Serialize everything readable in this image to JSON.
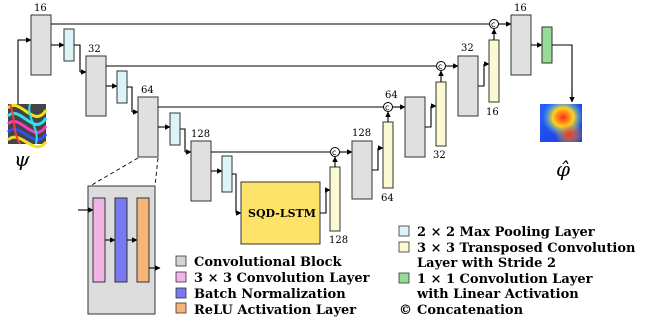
{
  "labels": {
    "psi": "ψ",
    "phi_hat": "φ̂",
    "lstm": "SQD-LSTM",
    "concat_symbol": "c"
  },
  "channels": {
    "c16_enc": "16",
    "c32_enc": "32",
    "c64_enc": "64",
    "c128_enc": "128",
    "c128_lstm": "128",
    "c128_dec": "128",
    "c64_dec_a": "64",
    "c64_dec_b": "64",
    "c32_dec_a": "32",
    "c32_dec_b": "32",
    "c16_dec_a": "16",
    "c16_dec_b": "16"
  },
  "legend_left": [
    {
      "text": "Convolutional Block",
      "color": "#d4d4d4"
    },
    {
      "text": "3 × 3 Convolution Layer",
      "color": "#f0b4e6"
    },
    {
      "text": "Batch Normalization",
      "color": "#7878f0"
    },
    {
      "text": "ReLU Activation Layer",
      "color": "#f5b478"
    }
  ],
  "legend_right": [
    {
      "text": "2 × 2 Max Pooling Layer",
      "color": "#dcf4f8"
    },
    {
      "text": "3 × 3 Transposed Convolution",
      "text2": "Layer with Stride 2",
      "color": "#fbf8d2"
    },
    {
      "text": "1 × 1 Convolution Layer",
      "text2": "with Linear Activation",
      "color": "#96dc96"
    },
    {
      "text": "Concatenation",
      "symbol": "©"
    }
  ],
  "colors": {
    "conv_block": "#e0e0e0",
    "maxpool": "#dcf4f8",
    "transposed": "#fbf8d2",
    "linear_conv": "#96dc96",
    "lstm": "#fde36a"
  }
}
